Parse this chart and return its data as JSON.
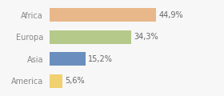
{
  "categories": [
    "Africa",
    "Europa",
    "Asia",
    "America"
  ],
  "values": [
    44.9,
    34.3,
    15.2,
    5.6
  ],
  "labels": [
    "44,9%",
    "34,3%",
    "15,2%",
    "5,6%"
  ],
  "bar_colors": [
    "#e8b88a",
    "#b5c98a",
    "#6a8fbe",
    "#f0d070"
  ],
  "background_color": "#f7f7f7",
  "xlim": [
    0,
    62
  ],
  "bar_height": 0.62,
  "label_fontsize": 7.0,
  "tick_fontsize": 7.0,
  "label_color": "#666666",
  "tick_color": "#888888"
}
